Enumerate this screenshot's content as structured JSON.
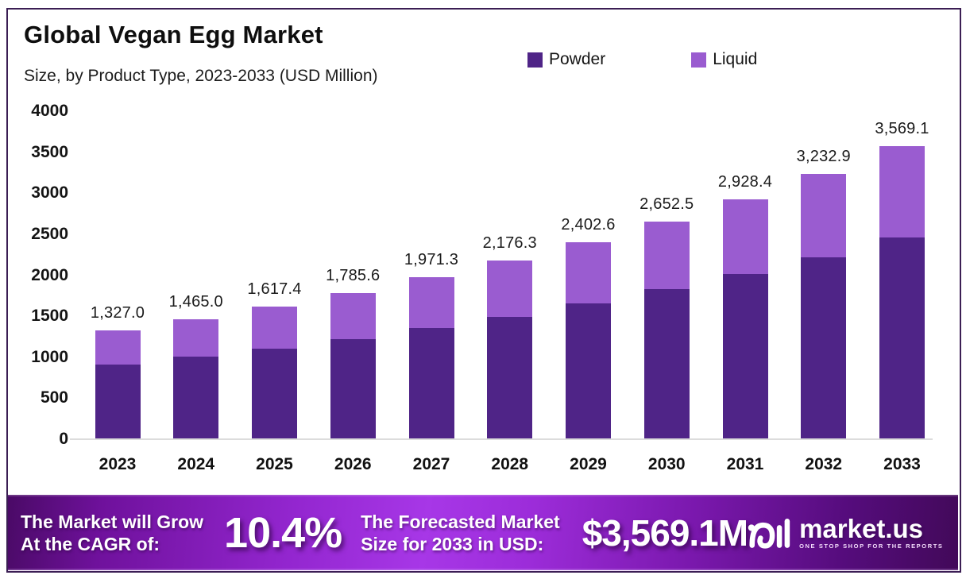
{
  "header": {
    "title": "Global Vegan Egg Market",
    "subtitle": "Size, by Product Type, 2023-2033 (USD Million)"
  },
  "legend": {
    "items": [
      {
        "label": "Powder",
        "color": "#4f2487"
      },
      {
        "label": "Liquid",
        "color": "#9a5cd0"
      }
    ]
  },
  "chart_data": {
    "type": "bar",
    "stacked": true,
    "title": "Global Vegan Egg Market Size, by Product Type, 2023-2033 (USD Million)",
    "categories": [
      "2023",
      "2024",
      "2025",
      "2026",
      "2027",
      "2028",
      "2029",
      "2030",
      "2031",
      "2032",
      "2033"
    ],
    "series": [
      {
        "name": "Powder",
        "color": "#4f2487",
        "values": [
          915.0,
          1010.0,
          1106.0,
          1221.0,
          1354.0,
          1495.0,
          1652.0,
          1832.0,
          2013.0,
          2221.0,
          2462.0
        ]
      },
      {
        "name": "Liquid",
        "color": "#9a5cd0",
        "values": [
          412.0,
          455.0,
          511.4,
          564.6,
          617.3,
          681.3,
          750.6,
          820.5,
          915.4,
          1011.9,
          1107.1
        ]
      }
    ],
    "totals": [
      1327.0,
      1465.0,
      1617.4,
      1785.6,
      1971.3,
      2176.3,
      2402.6,
      2652.5,
      2928.4,
      3232.9,
      3569.1
    ],
    "total_labels": [
      "1,327.0",
      "1,465.0",
      "1,617.4",
      "1,785.6",
      "1,971.3",
      "2,176.3",
      "2,402.6",
      "2,652.5",
      "2,928.4",
      "3,232.9",
      "3,569.1"
    ],
    "ylim": [
      0,
      4000
    ],
    "yticks": [
      0,
      500,
      1000,
      1500,
      2000,
      2500,
      3000,
      3500,
      4000
    ],
    "grid": false,
    "legend_position": "top"
  },
  "banner": {
    "grow_line1": "The Market will Grow",
    "grow_line2": "At the CAGR of:",
    "cagr_value": "10.4%",
    "forecast_line1": "The Forecasted Market",
    "forecast_line2": "Size for 2033 in USD:",
    "forecast_value": "$3,569.1M",
    "logo_text": "market.us",
    "logo_tagline": "ONE STOP SHOP FOR THE REPORTS"
  }
}
